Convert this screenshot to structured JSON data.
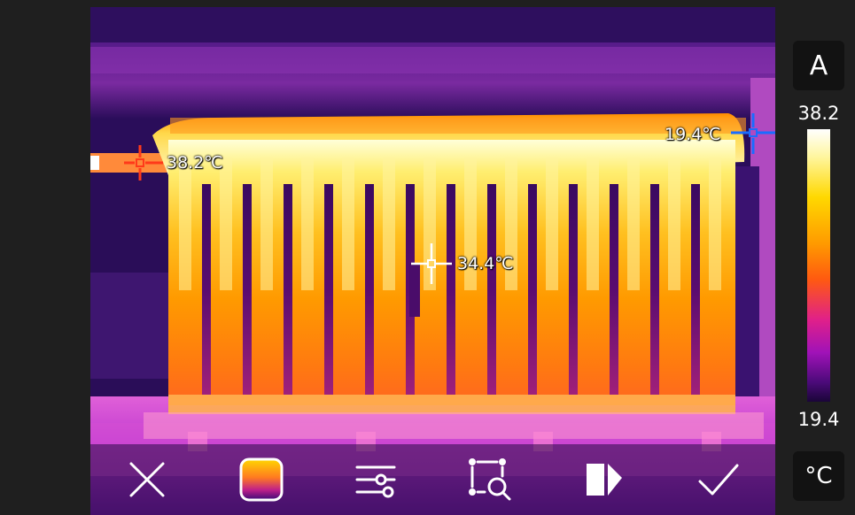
{
  "spots": [
    {
      "id": "max",
      "label": "38.2℃",
      "color": "#ff3a1a"
    },
    {
      "id": "center",
      "label": "34.4℃",
      "color": "#ffffff"
    },
    {
      "id": "min",
      "label": "19.4℃",
      "color": "#1a6cff"
    }
  ],
  "scale": {
    "mode": "A",
    "max": "38.2",
    "min": "19.4",
    "unit": "°C"
  },
  "toolbar": {
    "icons": [
      "close-icon",
      "palette-icon",
      "sliders-icon",
      "region-measure-icon",
      "image-fusion-icon",
      "check-icon"
    ]
  }
}
